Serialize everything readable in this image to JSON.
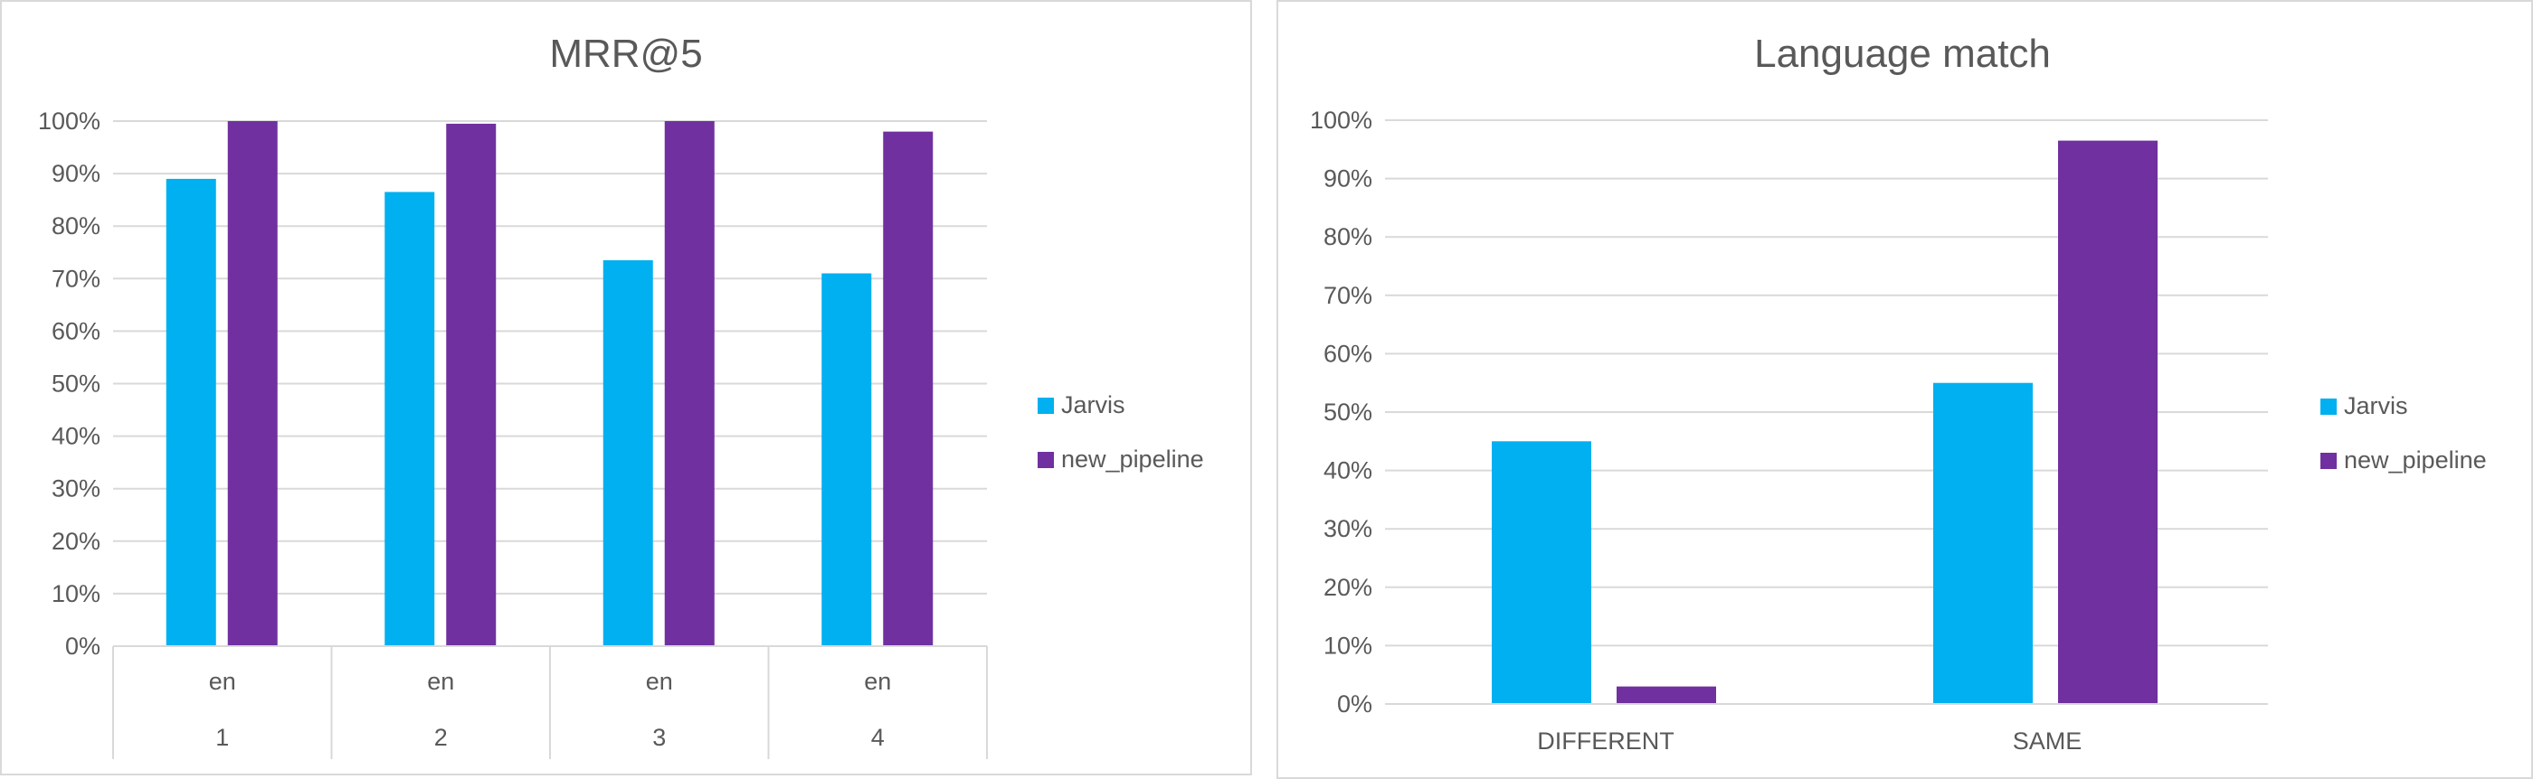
{
  "chart_data": [
    {
      "type": "bar",
      "title": "MRR@5",
      "categories": [
        {
          "level1": "en",
          "level2": "1"
        },
        {
          "level1": "en",
          "level2": "2"
        },
        {
          "level1": "en",
          "level2": "3"
        },
        {
          "level1": "en",
          "level2": "4"
        }
      ],
      "series": [
        {
          "name": "Jarvis",
          "color": "#00b0f0",
          "values": [
            0.89,
            0.865,
            0.735,
            0.71
          ]
        },
        {
          "name": "new_pipeline",
          "color": "#7030a0",
          "values": [
            1.0,
            0.995,
            1.0,
            0.98
          ]
        }
      ],
      "ylim": [
        0,
        1
      ],
      "yticks": [
        "0%",
        "10%",
        "20%",
        "30%",
        "40%",
        "50%",
        "60%",
        "70%",
        "80%",
        "90%",
        "100%"
      ],
      "xlabel": "",
      "ylabel": "",
      "grid": true,
      "legend": "right"
    },
    {
      "type": "bar",
      "title": "Language match",
      "categories": [
        "DIFFERENT",
        "SAME"
      ],
      "series": [
        {
          "name": "Jarvis",
          "color": "#00b0f0",
          "values": [
            0.45,
            0.55
          ]
        },
        {
          "name": "new_pipeline",
          "color": "#7030a0",
          "values": [
            0.03,
            0.965
          ]
        }
      ],
      "ylim": [
        0,
        1
      ],
      "yticks": [
        "0%",
        "10%",
        "20%",
        "30%",
        "40%",
        "50%",
        "60%",
        "70%",
        "80%",
        "90%",
        "100%"
      ],
      "xlabel": "",
      "ylabel": "",
      "grid": true,
      "legend": "right"
    }
  ]
}
